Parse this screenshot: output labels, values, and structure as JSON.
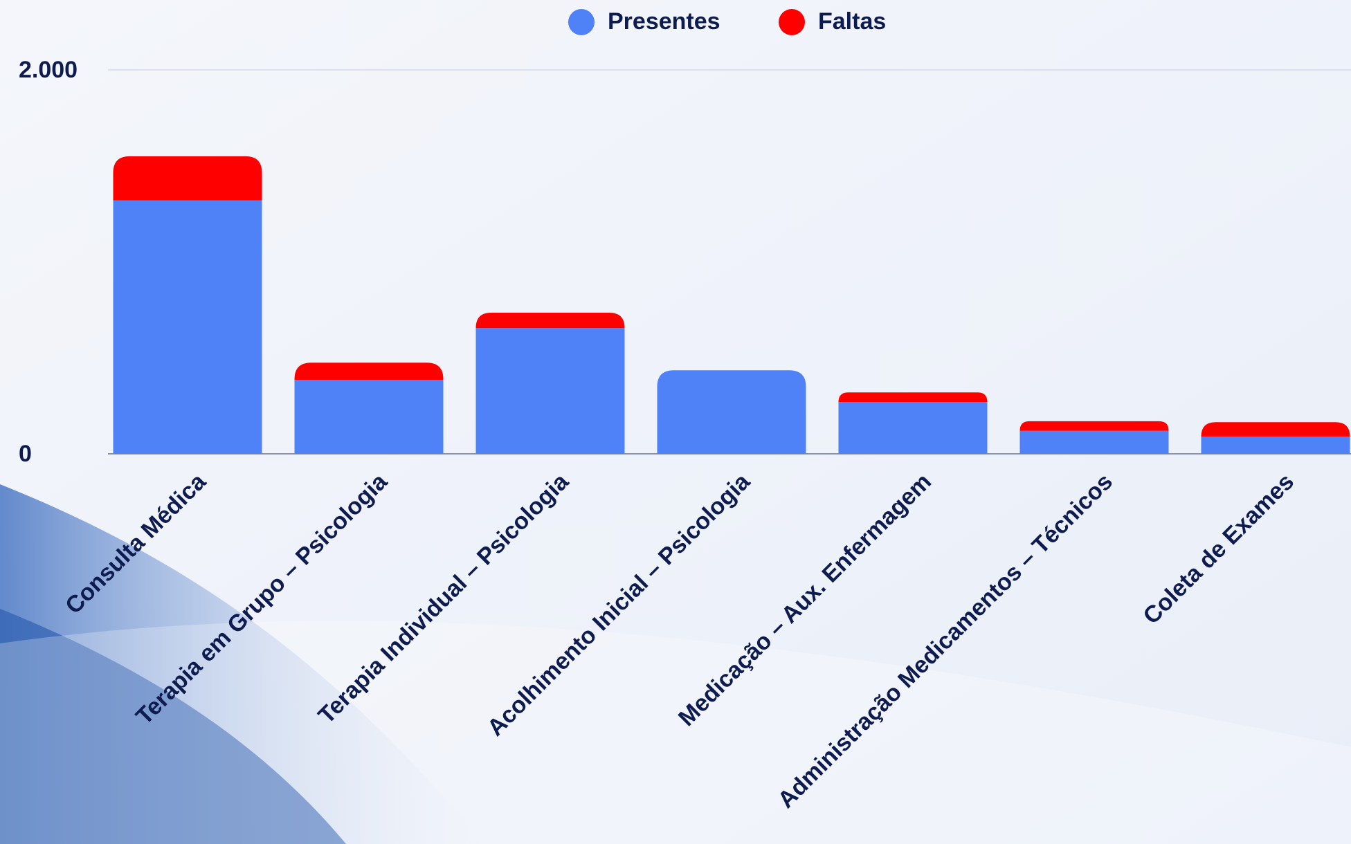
{
  "chart_data": {
    "type": "stacked_bar",
    "categories": [
      "Consulta Médica",
      "Terapia em Grupo – Psicologia",
      "Terapia Individual – Psicologia",
      "Acolhimento Inicial – Psicologia",
      "Medicação – Aux. Enfermagem",
      "Administração Medicamentos – Técnicos",
      "Coleta de Exames"
    ],
    "series": [
      {
        "name": "Presentes",
        "color": "#4f81f7",
        "values": [
          1320,
          385,
          655,
          435,
          270,
          120,
          90
        ]
      },
      {
        "name": "Faltas",
        "color": "#ff0000",
        "values": [
          230,
          90,
          80,
          0,
          50,
          50,
          75
        ]
      }
    ],
    "ylim": [
      0,
      2000
    ],
    "yticks": [
      0,
      {
        "value": 2000,
        "label": "2.000"
      }
    ],
    "grid": true,
    "legend": "top"
  }
}
